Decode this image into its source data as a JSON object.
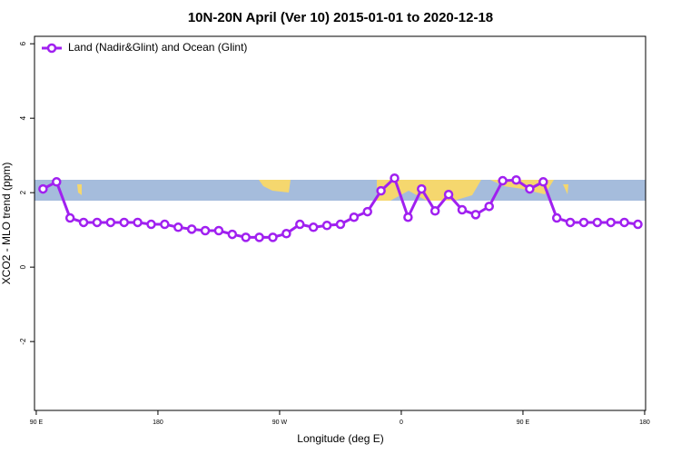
{
  "chart_data": {
    "type": "line",
    "title": "10N-20N April (Ver 10)   2015-01-01 to 2020-12-18",
    "x_label": "Longitude (deg E)",
    "y_label": "XCO2 - MLO trend (ppm)",
    "x": [
      95,
      105,
      115,
      125,
      135,
      145,
      155,
      165,
      175,
      185,
      195,
      205,
      215,
      225,
      235,
      245,
      255,
      265,
      275,
      285,
      295,
      305,
      315,
      325,
      335,
      345,
      355,
      365,
      375,
      385,
      395,
      405,
      415,
      425,
      435,
      445,
      455,
      465,
      475,
      485,
      495,
      505,
      515,
      525,
      535
    ],
    "series": [
      {
        "name": "Land (Nadir&Glint) and Ocean (Glint)",
        "color": "#a020f0",
        "values": [
          2.1,
          2.29,
          1.32,
          1.2,
          1.2,
          1.2,
          1.2,
          1.2,
          1.15,
          1.15,
          1.07,
          1.02,
          0.98,
          0.98,
          0.88,
          0.8,
          0.8,
          0.8,
          0.9,
          1.15,
          1.07,
          1.12,
          1.15,
          1.34,
          1.49,
          2.05,
          2.39,
          1.34,
          2.1,
          1.51,
          1.95,
          1.54,
          1.41,
          1.63,
          2.32,
          2.34,
          2.1,
          2.29,
          1.32,
          1.2,
          1.2,
          1.2,
          1.2,
          1.2,
          1.15
        ]
      }
    ],
    "xlim": [
      88.7,
      540.7
    ],
    "xticks": [
      {
        "value": 90,
        "label": "90 E"
      },
      180,
      {
        "value": 270,
        "label": "90 W"
      },
      {
        "value": 360,
        "label": "0"
      },
      {
        "value": 450,
        "label": "90 E"
      },
      {
        "value": 540,
        "label": "180"
      }
    ],
    "ylim": [
      -3.85,
      6.2
    ],
    "yticks": [
      -2,
      0,
      2,
      4,
      6
    ],
    "legend": "top-left"
  }
}
